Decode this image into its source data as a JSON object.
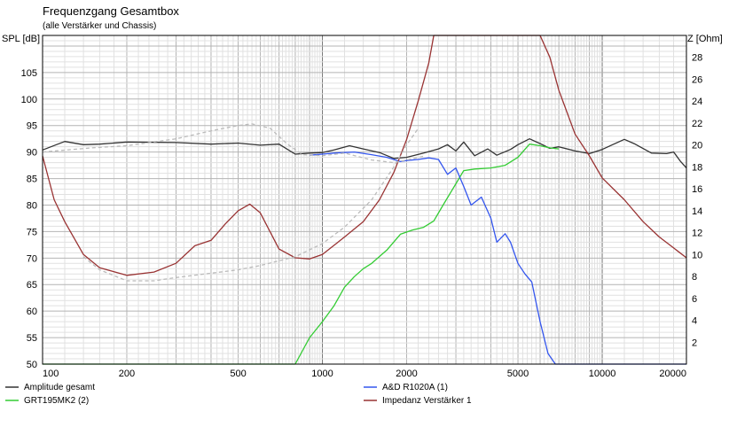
{
  "header": {
    "title": "Frequenzgang Gesamtbox",
    "subtitle": "(alle Verstärker und Chassis)"
  },
  "chart_data": {
    "type": "line",
    "title": "Frequenzgang Gesamtbox",
    "subtitle": "(alle Verstärker und Chassis)",
    "xscale": "log",
    "xlim": [
      100,
      20000
    ],
    "ylim": [
      50,
      112
    ],
    "y2lim": [
      0,
      30
    ],
    "ylabel": "SPL [dB]",
    "y2label": "Z [Ohm]",
    "grid": true,
    "x_ticks": [
      100,
      200,
      500,
      1000,
      2000,
      5000,
      10000,
      20000
    ],
    "y_ticks": [
      50,
      55,
      60,
      65,
      70,
      75,
      80,
      85,
      90,
      95,
      100,
      105
    ],
    "y2_ticks": [
      2,
      4,
      6,
      8,
      10,
      12,
      14,
      16,
      18,
      20,
      22,
      24,
      26,
      28
    ],
    "legend_position": "bottom",
    "series": [
      {
        "name": "Amplitude gesamt",
        "axis": "left",
        "color": "#333333",
        "style": "solid",
        "points": [
          [
            100,
            90.4
          ],
          [
            120,
            92
          ],
          [
            140,
            91.4
          ],
          [
            160,
            91.5
          ],
          [
            200,
            91.9
          ],
          [
            300,
            91.8
          ],
          [
            400,
            91.5
          ],
          [
            500,
            91.7
          ],
          [
            600,
            91.3
          ],
          [
            700,
            91.5
          ],
          [
            800,
            89.6
          ],
          [
            900,
            89.8
          ],
          [
            1000,
            89.9
          ],
          [
            1100,
            90.4
          ],
          [
            1250,
            91.2
          ],
          [
            1400,
            90.6
          ],
          [
            1600,
            89.9
          ],
          [
            1800,
            88.8
          ],
          [
            2000,
            89
          ],
          [
            2300,
            89.8
          ],
          [
            2600,
            90.6
          ],
          [
            2800,
            91.4
          ],
          [
            3000,
            90.2
          ],
          [
            3200,
            91.9
          ],
          [
            3500,
            89.3
          ],
          [
            3900,
            90.6
          ],
          [
            4200,
            89.4
          ],
          [
            4700,
            90.5
          ],
          [
            5000,
            91.4
          ],
          [
            5500,
            92.5
          ],
          [
            6000,
            91.6
          ],
          [
            6500,
            90.7
          ],
          [
            7000,
            91
          ],
          [
            8000,
            90.2
          ],
          [
            9000,
            89.7
          ],
          [
            10000,
            90.5
          ],
          [
            11000,
            91.5
          ],
          [
            12000,
            92.4
          ],
          [
            13000,
            91.6
          ],
          [
            15000,
            89.8
          ],
          [
            17000,
            89.7
          ],
          [
            18000,
            90
          ],
          [
            19000,
            88.3
          ],
          [
            20000,
            87
          ]
        ]
      },
      {
        "name": "GRT195MK2 (2)",
        "axis": "left",
        "color": "#33cc33",
        "style": "solid",
        "points": [
          [
            100,
            50
          ],
          [
            800,
            50
          ],
          [
            900,
            55
          ],
          [
            1000,
            58
          ],
          [
            1100,
            61
          ],
          [
            1200,
            64.5
          ],
          [
            1300,
            66.5
          ],
          [
            1400,
            68
          ],
          [
            1500,
            69
          ],
          [
            1700,
            71.5
          ],
          [
            1900,
            74.5
          ],
          [
            2100,
            75.3
          ],
          [
            2300,
            75.8
          ],
          [
            2500,
            77
          ],
          [
            2700,
            80
          ],
          [
            3000,
            84
          ],
          [
            3200,
            86.5
          ],
          [
            3500,
            86.8
          ],
          [
            4000,
            87
          ],
          [
            4500,
            87.5
          ],
          [
            5000,
            89
          ],
          [
            5500,
            91.5
          ],
          [
            6000,
            91.2
          ],
          [
            6500,
            90.8
          ],
          [
            7000,
            90.6
          ]
        ]
      },
      {
        "name": "A&D R1020A (1)",
        "axis": "left",
        "color": "#3355ee",
        "style": "solid",
        "points": [
          [
            900,
            89.4
          ],
          [
            1000,
            89.6
          ],
          [
            1100,
            89.8
          ],
          [
            1300,
            90
          ],
          [
            1500,
            89.5
          ],
          [
            1700,
            89
          ],
          [
            1900,
            88.2
          ],
          [
            2000,
            88.4
          ],
          [
            2200,
            88.6
          ],
          [
            2400,
            88.9
          ],
          [
            2600,
            88.6
          ],
          [
            2800,
            85.8
          ],
          [
            3000,
            87
          ],
          [
            3200,
            83.5
          ],
          [
            3400,
            80
          ],
          [
            3700,
            81.5
          ],
          [
            4000,
            77.5
          ],
          [
            4200,
            73
          ],
          [
            4500,
            74.6
          ],
          [
            4700,
            73
          ],
          [
            5000,
            69
          ],
          [
            5300,
            67
          ],
          [
            5600,
            65.5
          ],
          [
            6000,
            58
          ],
          [
            6400,
            52
          ],
          [
            6800,
            50
          ],
          [
            7000,
            50
          ],
          [
            20000,
            50
          ]
        ]
      },
      {
        "name": "Impedanz Verstärker 1",
        "axis": "right",
        "color": "#993333",
        "style": "solid",
        "points": [
          [
            100,
            19
          ],
          [
            110,
            15
          ],
          [
            120,
            13
          ],
          [
            140,
            10
          ],
          [
            160,
            8.8
          ],
          [
            200,
            8.1
          ],
          [
            250,
            8.4
          ],
          [
            300,
            9.2
          ],
          [
            350,
            10.8
          ],
          [
            400,
            11.3
          ],
          [
            450,
            12.8
          ],
          [
            500,
            14
          ],
          [
            550,
            14.6
          ],
          [
            600,
            13.8
          ],
          [
            700,
            10.5
          ],
          [
            800,
            9.7
          ],
          [
            900,
            9.6
          ],
          [
            1000,
            10
          ],
          [
            1200,
            11.6
          ],
          [
            1400,
            13
          ],
          [
            1600,
            15
          ],
          [
            1800,
            17.5
          ],
          [
            2000,
            20.5
          ],
          [
            2200,
            24
          ],
          [
            2400,
            27.5
          ],
          [
            2500,
            31
          ],
          [
            3000,
            31
          ],
          [
            4000,
            31
          ],
          [
            5000,
            31
          ],
          [
            6000,
            31
          ],
          [
            6500,
            28
          ],
          [
            7000,
            25
          ],
          [
            8000,
            21
          ],
          [
            9000,
            19
          ],
          [
            10000,
            17
          ],
          [
            12000,
            15
          ],
          [
            14000,
            13
          ],
          [
            16000,
            11.6
          ],
          [
            18000,
            10.6
          ],
          [
            20000,
            9.7
          ]
        ]
      },
      {
        "name": "",
        "axis": "left",
        "color": "#bbbbbb",
        "style": "dashed",
        "points": [
          [
            100,
            90
          ],
          [
            150,
            90.8
          ],
          [
            200,
            91.2
          ],
          [
            300,
            92.5
          ],
          [
            400,
            94
          ],
          [
            500,
            95
          ],
          [
            560,
            95.3
          ],
          [
            650,
            94.5
          ],
          [
            750,
            91.5
          ],
          [
            850,
            89.5
          ],
          [
            1000,
            89.3
          ],
          [
            1200,
            89.8
          ],
          [
            1500,
            88.5
          ],
          [
            1800,
            88
          ],
          [
            2000,
            88.5
          ],
          [
            2300,
            89.2
          ]
        ]
      },
      {
        "name": "",
        "axis": "right",
        "color": "#bbbbbb",
        "style": "dashed",
        "points": [
          [
            140,
            9.8
          ],
          [
            160,
            8.6
          ],
          [
            200,
            7.6
          ],
          [
            250,
            7.6
          ],
          [
            300,
            7.9
          ],
          [
            400,
            8.3
          ],
          [
            500,
            8.6
          ],
          [
            600,
            9
          ],
          [
            800,
            9.8
          ],
          [
            1000,
            11
          ],
          [
            1200,
            12.5
          ],
          [
            1500,
            15
          ],
          [
            1800,
            18
          ],
          [
            2000,
            20
          ],
          [
            2200,
            21.5
          ]
        ]
      }
    ]
  }
}
